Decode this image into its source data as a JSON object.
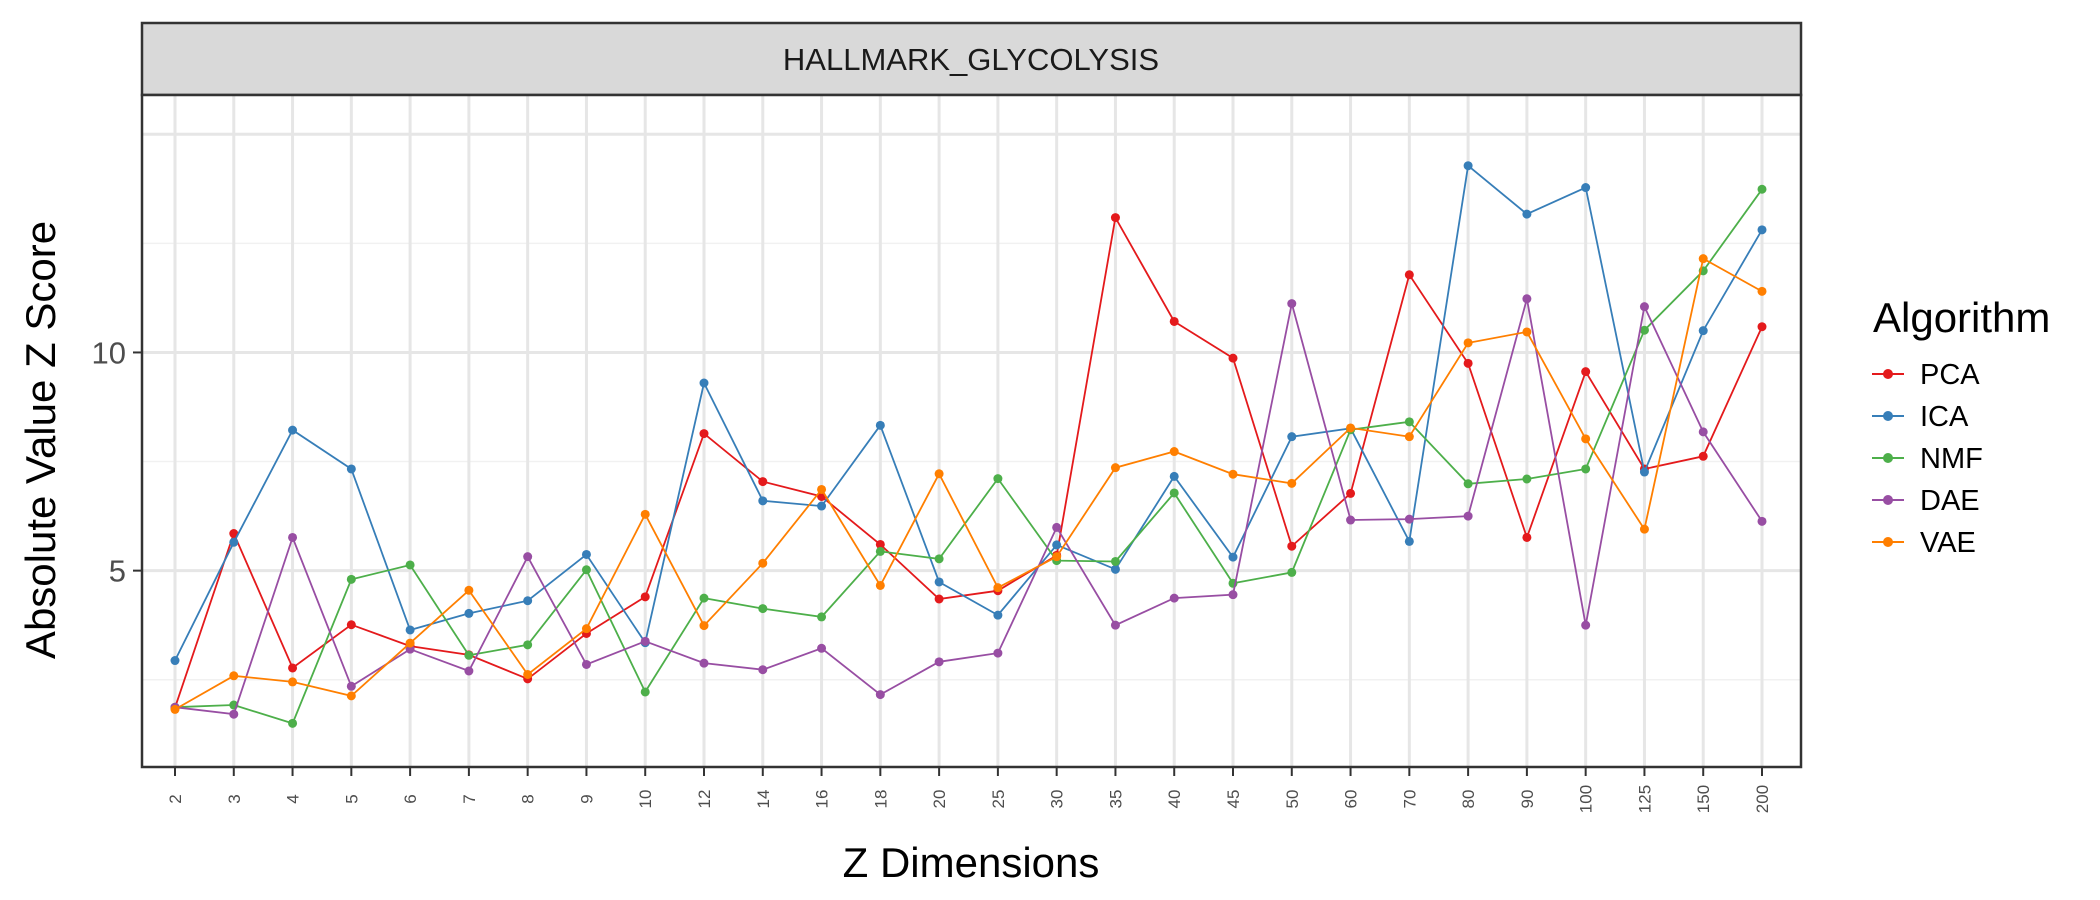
{
  "chart_data": {
    "type": "line",
    "title": "HALLMARK_GLYCOLYSIS",
    "xlabel": "Z Dimensions",
    "ylabel": "Absolute Value Z Score",
    "x_scale": "categorical",
    "categories": [
      "2",
      "3",
      "4",
      "5",
      "6",
      "7",
      "8",
      "9",
      "10",
      "12",
      "14",
      "16",
      "18",
      "20",
      "25",
      "30",
      "35",
      "40",
      "45",
      "50",
      "60",
      "70",
      "80",
      "90",
      "100",
      "125",
      "150",
      "200"
    ],
    "yticks": [
      5,
      10
    ],
    "ylim": [
      0.5,
      15.9
    ],
    "grid": true,
    "legend": {
      "title": "Algorithm",
      "position": "right"
    },
    "series": [
      {
        "name": "PCA",
        "color": "#E41A1C",
        "values": [
          1.86,
          5.85,
          2.77,
          3.76,
          3.27,
          3.07,
          2.52,
          3.56,
          4.4,
          8.14,
          7.04,
          6.7,
          5.6,
          4.35,
          4.54,
          5.35,
          13.09,
          10.71,
          9.87,
          5.56,
          6.77,
          11.78,
          9.75,
          5.76,
          9.56,
          7.33,
          7.62,
          10.59
        ]
      },
      {
        "name": "ICA",
        "color": "#377EB8",
        "values": [
          2.94,
          5.65,
          8.22,
          7.33,
          3.64,
          4.02,
          4.31,
          5.37,
          3.35,
          9.3,
          6.6,
          6.48,
          8.33,
          4.74,
          3.98,
          5.59,
          5.03,
          7.16,
          5.31,
          8.07,
          8.26,
          5.67,
          14.28,
          13.17,
          13.78,
          7.26,
          10.5,
          12.81
        ]
      },
      {
        "name": "NMF",
        "color": "#4DAF4A",
        "values": [
          1.87,
          1.92,
          1.5,
          4.8,
          5.13,
          3.06,
          3.3,
          5.02,
          2.22,
          4.37,
          4.13,
          3.94,
          5.44,
          5.27,
          7.11,
          5.23,
          5.21,
          6.78,
          4.71,
          4.96,
          8.23,
          8.41,
          6.99,
          7.1,
          7.33,
          10.51,
          11.87,
          13.74
        ]
      },
      {
        "name": "DAE",
        "color": "#984EA3",
        "values": [
          1.87,
          1.71,
          5.76,
          2.35,
          3.2,
          2.7,
          5.32,
          2.85,
          3.38,
          2.88,
          2.73,
          3.22,
          2.16,
          2.91,
          3.11,
          5.99,
          3.75,
          4.37,
          4.45,
          11.12,
          6.16,
          6.18,
          6.25,
          11.23,
          3.75,
          11.05,
          8.18,
          6.13
        ]
      },
      {
        "name": "VAE",
        "color": "#FF7F00",
        "values": [
          1.82,
          2.59,
          2.45,
          2.13,
          3.34,
          4.55,
          2.62,
          3.67,
          6.29,
          3.74,
          5.17,
          6.86,
          4.66,
          7.22,
          4.61,
          5.32,
          7.36,
          7.73,
          7.21,
          7.0,
          8.27,
          8.07,
          10.22,
          10.47,
          8.02,
          5.95,
          12.15,
          11.4
        ]
      }
    ]
  }
}
